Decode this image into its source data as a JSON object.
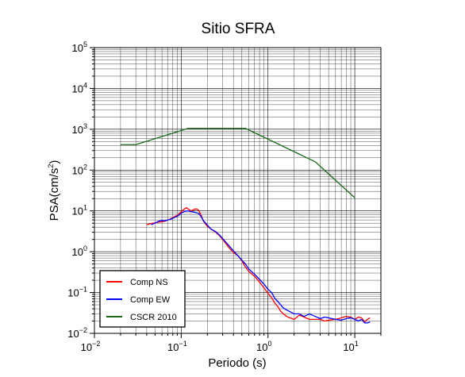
{
  "chart_data": {
    "type": "line",
    "title": "Sitio SFRA",
    "xlabel": "Periodo (s)",
    "ylabel_base": "PSA(cm/s",
    "ylabel_sup": "2",
    "ylabel_end": ")",
    "xscale": "log",
    "yscale": "log",
    "xlim": [
      0.01,
      20
    ],
    "ylim": [
      0.01,
      100000
    ],
    "grid": true,
    "legend_position": "bottom-left",
    "x_ticks": [
      {
        "base": "10",
        "exp": "−2"
      },
      {
        "base": "10",
        "exp": "−1"
      },
      {
        "base": "10",
        "exp": "0"
      },
      {
        "base": "10",
        "exp": "1"
      }
    ],
    "x_tick_values": [
      0.01,
      0.1,
      1,
      10
    ],
    "y_ticks": [
      {
        "base": "10",
        "exp": "−2"
      },
      {
        "base": "10",
        "exp": "−1"
      },
      {
        "base": "10",
        "exp": "0"
      },
      {
        "base": "10",
        "exp": "1"
      },
      {
        "base": "10",
        "exp": "2"
      },
      {
        "base": "10",
        "exp": "3"
      },
      {
        "base": "10",
        "exp": "4"
      },
      {
        "base": "10",
        "exp": "5"
      }
    ],
    "y_tick_values": [
      0.01,
      0.1,
      1,
      10,
      100,
      1000,
      10000,
      100000
    ],
    "series": [
      {
        "name": "Comp NS",
        "color": "#ff0000",
        "x": [
          0.04,
          0.045,
          0.05,
          0.055,
          0.06,
          0.065,
          0.07,
          0.075,
          0.08,
          0.085,
          0.09,
          0.095,
          0.1,
          0.105,
          0.11,
          0.115,
          0.12,
          0.13,
          0.14,
          0.15,
          0.16,
          0.17,
          0.18,
          0.2,
          0.22,
          0.25,
          0.28,
          0.3,
          0.35,
          0.4,
          0.45,
          0.5,
          0.55,
          0.6,
          0.7,
          0.8,
          0.9,
          1.0,
          1.1,
          1.2,
          1.3,
          1.4,
          1.5,
          1.7,
          2.0,
          2.3,
          2.6,
          3.0,
          3.5,
          4.0,
          4.5,
          5.0,
          6.0,
          7.0,
          8.0,
          9.0,
          10.0,
          11.0,
          12.0,
          13.0,
          14.0,
          15.0
        ],
        "y": [
          4.6,
          4.9,
          5.1,
          5.3,
          5.4,
          5.6,
          6.0,
          6.3,
          6.9,
          7.3,
          7.8,
          8.6,
          9.5,
          10.5,
          11.3,
          12.0,
          11.2,
          10.0,
          10.8,
          11.2,
          10.2,
          7.8,
          5.6,
          4.2,
          3.6,
          3.0,
          2.4,
          2.0,
          1.3,
          0.95,
          0.8,
          0.6,
          0.42,
          0.33,
          0.25,
          0.18,
          0.13,
          0.095,
          0.075,
          0.055,
          0.045,
          0.035,
          0.03,
          0.025,
          0.022,
          0.028,
          0.025,
          0.022,
          0.022,
          0.022,
          0.02,
          0.021,
          0.022,
          0.024,
          0.026,
          0.025,
          0.022,
          0.025,
          0.024,
          0.019,
          0.022,
          0.024
        ]
      },
      {
        "name": "Comp EW",
        "color": "#0000ff",
        "x": [
          0.045,
          0.05,
          0.055,
          0.06,
          0.065,
          0.07,
          0.075,
          0.08,
          0.085,
          0.09,
          0.095,
          0.1,
          0.11,
          0.12,
          0.13,
          0.14,
          0.15,
          0.16,
          0.17,
          0.18,
          0.2,
          0.22,
          0.25,
          0.28,
          0.3,
          0.35,
          0.4,
          0.45,
          0.5,
          0.55,
          0.6,
          0.7,
          0.8,
          0.9,
          1.0,
          1.1,
          1.2,
          1.3,
          1.4,
          1.5,
          1.7,
          2.0,
          2.3,
          2.6,
          3.0,
          3.5,
          4.0,
          4.5,
          5.0,
          6.0,
          7.0,
          8.0,
          9.0,
          10.0,
          11.0,
          12.0,
          13.0,
          14.0,
          15.0
        ],
        "y": [
          4.6,
          5.0,
          5.6,
          5.8,
          5.7,
          6.0,
          6.2,
          6.6,
          7.0,
          7.4,
          8.0,
          8.8,
          9.8,
          10.0,
          9.6,
          9.4,
          9.0,
          8.6,
          7.2,
          5.8,
          4.5,
          3.6,
          3.1,
          2.5,
          2.1,
          1.45,
          1.05,
          0.8,
          0.62,
          0.5,
          0.38,
          0.28,
          0.21,
          0.16,
          0.12,
          0.1,
          0.072,
          0.06,
          0.05,
          0.042,
          0.036,
          0.03,
          0.03,
          0.026,
          0.03,
          0.026,
          0.023,
          0.025,
          0.024,
          0.022,
          0.021,
          0.023,
          0.024,
          0.022,
          0.02,
          0.022,
          0.018,
          0.018,
          0.019
        ]
      },
      {
        "name": "CSCR 2010",
        "color": "#1a6a1a",
        "x": [
          0.02,
          0.03,
          0.12,
          0.55,
          3.5,
          10.0
        ],
        "y": [
          420,
          420,
          1050,
          1050,
          160,
          21
        ]
      }
    ]
  }
}
